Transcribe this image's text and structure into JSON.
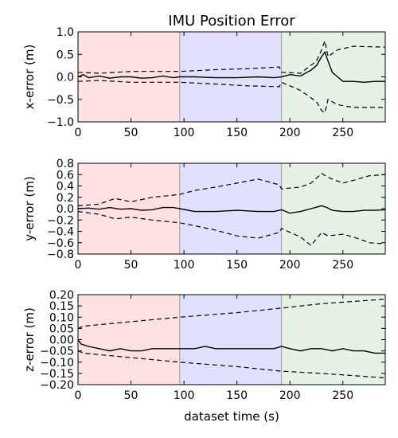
{
  "chart_data": {
    "type": "line",
    "title": "IMU Position Error",
    "xlabel": "dataset time (s)",
    "xlim": [
      0,
      290
    ],
    "xticks": [
      0,
      50,
      100,
      150,
      200,
      250
    ],
    "grid": false,
    "legend": "none",
    "colors": {
      "region_1": "#ffe1e1",
      "region_2": "#e1e1ff",
      "region_3": "#e6f2e6",
      "boundary": "#aaaaaa",
      "line": "#000000"
    },
    "regions": [
      {
        "x0": 0,
        "x1": 96
      },
      {
        "x0": 96,
        "x1": 192
      },
      {
        "x0": 192,
        "x1": 290
      }
    ],
    "panels": [
      {
        "ylabel": "x-error (m)",
        "ylim": [
          -1.0,
          1.0
        ],
        "yticks": [
          "1.0",
          "0.5",
          "0.0",
          "−0.5",
          "−1.0"
        ],
        "ytick_values": [
          1.0,
          0.5,
          0.0,
          -0.5,
          -1.0
        ],
        "series": [
          {
            "style": "solid",
            "x": [
              0,
              5,
              10,
              20,
              30,
              40,
              50,
              60,
              70,
              80,
              90,
              96,
              110,
              130,
              150,
              170,
              185,
              192,
              200,
              210,
              220,
              225,
              230,
              233,
              236,
              240,
              245,
              250,
              260,
              270,
              280,
              290
            ],
            "y": [
              0.0,
              0.05,
              -0.02,
              0.02,
              -0.03,
              0.0,
              0.0,
              -0.03,
              -0.02,
              0.02,
              -0.02,
              0.0,
              0.0,
              -0.02,
              -0.02,
              0.0,
              -0.02,
              0.0,
              0.05,
              0.02,
              0.15,
              0.25,
              0.45,
              0.55,
              0.35,
              0.1,
              0.0,
              -0.1,
              -0.1,
              -0.12,
              -0.1,
              -0.1
            ]
          },
          {
            "style": "dashed",
            "x": [
              0,
              20,
              50,
              96,
              130,
              160,
              190,
              192,
              210,
              225,
              230,
              233,
              236,
              245,
              260,
              290
            ],
            "y": [
              0.1,
              0.08,
              0.12,
              0.12,
              0.16,
              0.18,
              0.22,
              0.1,
              0.08,
              0.35,
              0.6,
              0.8,
              0.45,
              0.6,
              0.68,
              0.66
            ]
          },
          {
            "style": "dashed",
            "x": [
              0,
              20,
              50,
              96,
              130,
              160,
              190,
              192,
              210,
              225,
              230,
              233,
              236,
              245,
              260,
              290
            ],
            "y": [
              -0.1,
              -0.08,
              -0.12,
              -0.12,
              -0.16,
              -0.2,
              -0.22,
              -0.12,
              -0.3,
              -0.55,
              -0.75,
              -0.8,
              -0.5,
              -0.62,
              -0.68,
              -0.68
            ]
          }
        ]
      },
      {
        "ylabel": "y-error (m)",
        "ylim": [
          -0.8,
          0.8
        ],
        "yticks": [
          "0.8",
          "0.6",
          "0.4",
          "0.2",
          "0.0",
          "−0.2",
          "−0.4",
          "−0.6",
          "−0.8"
        ],
        "ytick_values": [
          0.8,
          0.6,
          0.4,
          0.2,
          0.0,
          -0.2,
          -0.4,
          -0.6,
          -0.8
        ],
        "series": [
          {
            "style": "solid",
            "x": [
              0,
              10,
              20,
              30,
              40,
              50,
              60,
              70,
              80,
              90,
              96,
              110,
              130,
              150,
              170,
              185,
              192,
              200,
              210,
              220,
              230,
              235,
              240,
              250,
              260,
              270,
              280,
              290
            ],
            "y": [
              0.0,
              0.01,
              -0.01,
              0.02,
              -0.01,
              0.0,
              -0.03,
              -0.02,
              0.02,
              0.02,
              0.0,
              -0.05,
              -0.05,
              -0.03,
              -0.05,
              -0.05,
              -0.02,
              -0.08,
              -0.05,
              0.0,
              0.05,
              0.02,
              -0.03,
              -0.05,
              -0.05,
              -0.03,
              -0.03,
              -0.02
            ]
          },
          {
            "style": "dashed",
            "x": [
              0,
              20,
              35,
              50,
              70,
              96,
              110,
              130,
              150,
              170,
              190,
              192,
              210,
              220,
              230,
              236,
              250,
              260,
              275,
              290
            ],
            "y": [
              0.05,
              0.08,
              0.18,
              0.12,
              0.2,
              0.25,
              0.32,
              0.38,
              0.45,
              0.52,
              0.42,
              0.35,
              0.38,
              0.45,
              0.62,
              0.55,
              0.45,
              0.5,
              0.58,
              0.6
            ]
          },
          {
            "style": "dashed",
            "x": [
              0,
              20,
              35,
              50,
              70,
              96,
              110,
              130,
              150,
              170,
              190,
              192,
              210,
              220,
              230,
              236,
              250,
              260,
              275,
              290
            ],
            "y": [
              -0.05,
              -0.1,
              -0.18,
              -0.15,
              -0.2,
              -0.25,
              -0.3,
              -0.38,
              -0.48,
              -0.52,
              -0.42,
              -0.35,
              -0.5,
              -0.65,
              -0.42,
              -0.48,
              -0.45,
              -0.5,
              -0.6,
              -0.62
            ]
          }
        ]
      },
      {
        "ylabel": "z-error (m)",
        "ylim": [
          -0.2,
          0.2
        ],
        "yticks": [
          "0.20",
          "0.15",
          "0.10",
          "0.05",
          "0.00",
          "−0.05",
          "−0.10",
          "−0.15",
          "−0.20"
        ],
        "ytick_values": [
          0.2,
          0.15,
          0.1,
          0.05,
          0.0,
          -0.05,
          -0.1,
          -0.15,
          -0.2
        ],
        "series": [
          {
            "style": "solid",
            "x": [
              0,
              3,
              10,
              20,
              30,
              40,
              50,
              60,
              70,
              80,
              90,
              96,
              110,
              120,
              130,
              150,
              170,
              185,
              192,
              200,
              210,
              220,
              230,
              240,
              250,
              260,
              270,
              280,
              290
            ],
            "y": [
              0.0,
              -0.02,
              -0.03,
              -0.04,
              -0.05,
              -0.04,
              -0.05,
              -0.05,
              -0.04,
              -0.04,
              -0.04,
              -0.04,
              -0.04,
              -0.03,
              -0.04,
              -0.04,
              -0.04,
              -0.04,
              -0.03,
              -0.04,
              -0.05,
              -0.04,
              -0.04,
              -0.05,
              -0.04,
              -0.05,
              -0.05,
              -0.06,
              -0.06
            ]
          },
          {
            "style": "dashed",
            "x": [
              0,
              5,
              50,
              96,
              150,
              192,
              230,
              260,
              290
            ],
            "y": [
              0.05,
              0.06,
              0.08,
              0.1,
              0.12,
              0.14,
              0.16,
              0.17,
              0.18
            ]
          },
          {
            "style": "dashed",
            "x": [
              0,
              5,
              50,
              96,
              150,
              192,
              230,
              260,
              290
            ],
            "y": [
              -0.05,
              -0.06,
              -0.08,
              -0.1,
              -0.12,
              -0.14,
              -0.15,
              -0.16,
              -0.17
            ]
          }
        ]
      }
    ]
  }
}
